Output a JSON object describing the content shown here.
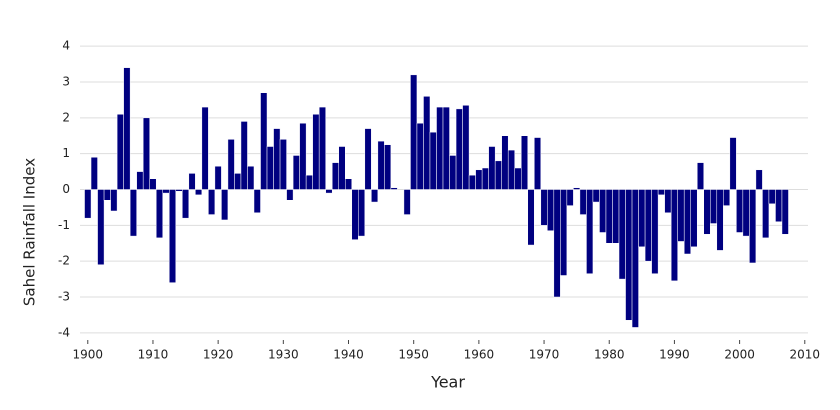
{
  "chart_data": {
    "type": "bar",
    "xlabel": "Year",
    "ylabel": "Sahel Rainfall Index",
    "color": "#000080",
    "grid": true,
    "x": [
      1900,
      1901,
      1902,
      1903,
      1904,
      1905,
      1906,
      1907,
      1908,
      1909,
      1910,
      1911,
      1912,
      1913,
      1914,
      1915,
      1916,
      1917,
      1918,
      1919,
      1920,
      1921,
      1922,
      1923,
      1924,
      1925,
      1926,
      1927,
      1928,
      1929,
      1930,
      1931,
      1932,
      1933,
      1934,
      1935,
      1936,
      1937,
      1938,
      1939,
      1940,
      1941,
      1942,
      1943,
      1944,
      1945,
      1946,
      1947,
      1948,
      1949,
      1950,
      1951,
      1952,
      1953,
      1954,
      1955,
      1956,
      1957,
      1958,
      1959,
      1960,
      1961,
      1962,
      1963,
      1964,
      1965,
      1966,
      1967,
      1968,
      1969,
      1970,
      1971,
      1972,
      1973,
      1974,
      1975,
      1976,
      1977,
      1978,
      1979,
      1980,
      1981,
      1982,
      1983,
      1984,
      1985,
      1986,
      1987,
      1988,
      1989,
      1990,
      1991,
      1992,
      1993,
      1994,
      1995,
      1996,
      1997,
      1998,
      1999,
      2000,
      2001,
      2002,
      2003,
      2004,
      2005,
      2006,
      2007
    ],
    "values": [
      -0.8,
      0.9,
      -2.1,
      -0.3,
      -0.6,
      2.1,
      3.4,
      -1.3,
      0.5,
      2.0,
      0.3,
      -1.35,
      -0.1,
      -2.6,
      -0.05,
      -0.8,
      0.45,
      -0.15,
      2.3,
      -0.7,
      0.65,
      -0.85,
      1.4,
      0.45,
      1.9,
      0.65,
      -0.65,
      2.7,
      1.2,
      1.7,
      1.4,
      -0.3,
      0.95,
      1.85,
      0.4,
      2.1,
      2.3,
      -0.1,
      0.75,
      1.2,
      0.3,
      -1.4,
      -1.3,
      1.7,
      -0.35,
      1.35,
      1.25,
      0.05,
      0.0,
      -0.7,
      3.2,
      1.85,
      2.6,
      1.6,
      2.3,
      2.3,
      0.95,
      2.25,
      2.35,
      0.4,
      0.55,
      0.6,
      1.2,
      0.8,
      1.5,
      1.1,
      0.6,
      1.5,
      -1.55,
      1.45,
      -1.0,
      -1.15,
      -3.0,
      -2.4,
      -0.45,
      0.05,
      -0.7,
      -2.35,
      -0.35,
      -1.2,
      -1.5,
      -1.5,
      -2.5,
      -3.65,
      -3.85,
      -1.6,
      -2.0,
      -2.35,
      -0.15,
      -0.65,
      -2.55,
      -1.45,
      -1.8,
      -1.6,
      0.75,
      -1.25,
      -0.95,
      -1.7,
      -0.45,
      1.45,
      -1.2,
      -1.3,
      -2.05,
      0.55,
      -1.35,
      -0.4,
      -0.9,
      -1.25
    ],
    "xlim": [
      1898.5,
      2010.8
    ],
    "xticks": [
      1900,
      1910,
      1920,
      1930,
      1940,
      1950,
      1960,
      1970,
      1980,
      1990,
      2000,
      2010
    ],
    "ylim": [
      -4.2,
      4.2
    ],
    "yticks": [
      -4,
      -3,
      -2,
      -1,
      0,
      1,
      2,
      3,
      4
    ]
  }
}
